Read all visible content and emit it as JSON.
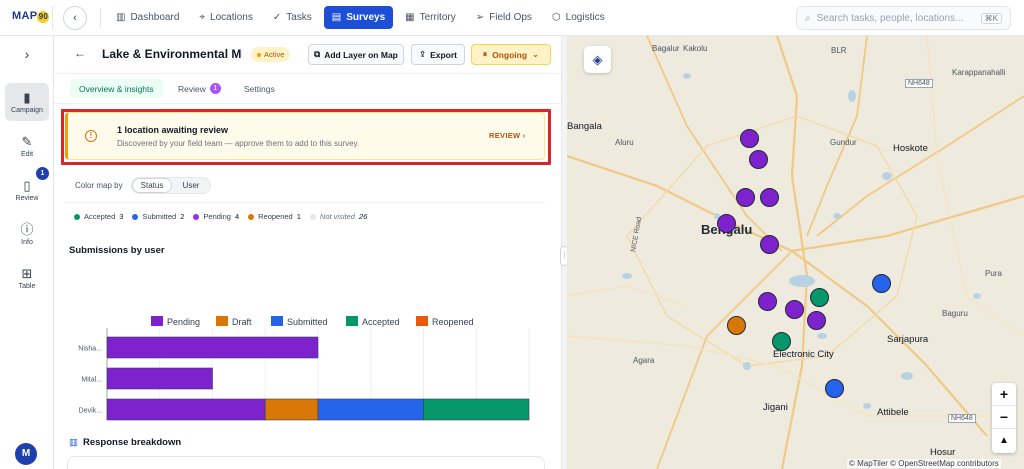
{
  "app": {
    "logo_text": "MAP",
    "logo_badge": "90"
  },
  "nav": {
    "items": [
      {
        "label": "Dashboard",
        "icon": "bar-chart-icon"
      },
      {
        "label": "Locations",
        "icon": "pin-icon"
      },
      {
        "label": "Tasks",
        "icon": "check-icon"
      },
      {
        "label": "Surveys",
        "icon": "clipboard-icon",
        "active": true
      },
      {
        "label": "Territory",
        "icon": "map-icon"
      },
      {
        "label": "Field Ops",
        "icon": "send-icon"
      },
      {
        "label": "Logistics",
        "icon": "box-icon"
      }
    ],
    "search_placeholder": "Search tasks, people, locations...",
    "search_shortcut": "⌘K"
  },
  "rail": {
    "items": [
      {
        "label": "Campaign",
        "icon": "clipboard-icon",
        "active": true
      },
      {
        "label": "Edit",
        "icon": "pencil-icon"
      },
      {
        "label": "Review",
        "icon": "document-icon",
        "badge": "1"
      },
      {
        "label": "Info",
        "icon": "info-icon"
      },
      {
        "label": "Table",
        "icon": "grid-icon"
      }
    ],
    "avatar_initial": "M"
  },
  "panel": {
    "title": "Lake & Environmental Mo...",
    "status": "Active",
    "add_layer_label": "Add Layer on Map",
    "export_label": "Export",
    "ongoing_label": "Ongoing",
    "tabs": [
      {
        "label": "Overview & insights",
        "active": true
      },
      {
        "label": "Review",
        "badge": "1"
      },
      {
        "label": "Settings"
      }
    ],
    "alert": {
      "title": "1 location awaiting review",
      "subtitle": "Discovered by your field team — approve them to add to this survey.",
      "action": "REVIEW"
    },
    "color_map": {
      "label": "Color map by",
      "options": [
        "Status",
        "User"
      ],
      "selected": "Status"
    },
    "status_legend": [
      {
        "label": "Accepted",
        "count": "3",
        "color": "#059669"
      },
      {
        "label": "Submitted",
        "count": "2",
        "color": "#2563eb"
      },
      {
        "label": "Pending",
        "count": "4",
        "color": "#9333ea"
      },
      {
        "label": "Reopened",
        "count": "1",
        "color": "#d97706"
      },
      {
        "label": "Not visited",
        "count": "26",
        "color": "#e5e7eb"
      }
    ],
    "submissions_title": "Submissions by user",
    "response_title": "Response breakdown"
  },
  "chart_data": {
    "type": "bar",
    "orientation": "horizontal",
    "stacked": true,
    "title": "Submissions by user",
    "categories": [
      "Nisha...",
      "Mital...",
      "Devik..."
    ],
    "series": [
      {
        "name": "Pending",
        "color": "#7e22ce",
        "values": [
          4,
          2,
          3
        ]
      },
      {
        "name": "Draft",
        "color": "#d97706",
        "values": [
          0,
          0,
          1
        ]
      },
      {
        "name": "Submitted",
        "color": "#2563eb",
        "values": [
          0,
          0,
          2
        ]
      },
      {
        "name": "Accepted",
        "color": "#059669",
        "values": [
          0,
          0,
          2
        ]
      },
      {
        "name": "Reopened",
        "color": "#ea580c",
        "values": [
          0,
          0,
          0
        ]
      }
    ],
    "xlim": [
      0,
      8
    ],
    "xticks": [
      0,
      1,
      2,
      3,
      4,
      5,
      6,
      7,
      8
    ],
    "grid": true,
    "legend_position": "top"
  },
  "map": {
    "labels": [
      {
        "text": "Bagalur",
        "kind": "small"
      },
      {
        "text": "Kakolu",
        "kind": "small"
      },
      {
        "text": "BLR",
        "kind": "small"
      },
      {
        "text": "Karappanahalli",
        "kind": "small"
      },
      {
        "text": "NH648",
        "kind": "small"
      },
      {
        "text": "Bangala",
        "kind": "mid"
      },
      {
        "text": "Aluru",
        "kind": "small"
      },
      {
        "text": "Gundur",
        "kind": "small"
      },
      {
        "text": "Hoskote",
        "kind": "mid"
      },
      {
        "text": "Bengalu",
        "kind": "city"
      },
      {
        "text": "NICE Road",
        "kind": "small"
      },
      {
        "text": "Pura",
        "kind": "small"
      },
      {
        "text": "Baguru",
        "kind": "small"
      },
      {
        "text": "Sarjapura",
        "kind": "mid"
      },
      {
        "text": "Electronic City",
        "kind": "mid"
      },
      {
        "text": "Agara",
        "kind": "small"
      },
      {
        "text": "Jigani",
        "kind": "mid"
      },
      {
        "text": "Attibele",
        "kind": "mid"
      },
      {
        "text": "NH648",
        "kind": "small"
      },
      {
        "text": "Hosur",
        "kind": "mid"
      }
    ],
    "markers": [
      {
        "status": "Pending",
        "color": "#7e22ce"
      },
      {
        "status": "Pending",
        "color": "#7e22ce"
      },
      {
        "status": "Pending",
        "color": "#7e22ce"
      },
      {
        "status": "Pending",
        "color": "#7e22ce"
      },
      {
        "status": "Pending",
        "color": "#7e22ce"
      },
      {
        "status": "Pending",
        "color": "#7e22ce"
      },
      {
        "status": "Pending",
        "color": "#7e22ce"
      },
      {
        "status": "Pending",
        "color": "#7e22ce"
      },
      {
        "status": "Pending",
        "color": "#7e22ce"
      },
      {
        "status": "Submitted",
        "color": "#2563eb"
      },
      {
        "status": "Submitted",
        "color": "#2563eb"
      },
      {
        "status": "Accepted",
        "color": "#059669"
      },
      {
        "status": "Accepted",
        "color": "#059669"
      },
      {
        "status": "Reopened",
        "color": "#d97706"
      }
    ],
    "attribution": "© MapTiler © OpenStreetMap contributors"
  }
}
